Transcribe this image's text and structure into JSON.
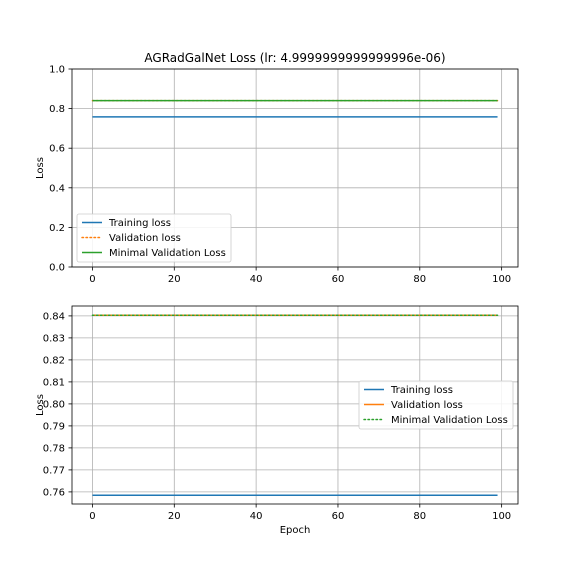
{
  "chart_data": [
    {
      "type": "line",
      "title": "AGRadGalNet Loss (lr: 4.9999999999999996e-06)",
      "xlabel": "",
      "ylabel": "Loss",
      "xlim": [
        -5,
        104
      ],
      "ylim": [
        0.0,
        1.0
      ],
      "xticks": [
        "0",
        "20",
        "40",
        "60",
        "80",
        "100"
      ],
      "yticks": [
        "0.0",
        "0.2",
        "0.4",
        "0.6",
        "0.8",
        "1.0"
      ],
      "grid": true,
      "legend_position": "lower-left",
      "series": [
        {
          "name": "Training loss",
          "color": "#1f77b4",
          "style": "solid",
          "x_start": 0,
          "x_end": 99,
          "value": 0.7585
        },
        {
          "name": "Validation loss",
          "color": "#ff7f0e",
          "style": "dotted",
          "x_start": 0,
          "x_end": 99,
          "value": 0.8403
        },
        {
          "name": "Minimal Validation Loss",
          "color": "#2ca02c",
          "style": "solid",
          "x_start": 0,
          "x_end": 99,
          "value": 0.8403
        }
      ]
    },
    {
      "type": "line",
      "title": "",
      "xlabel": "Epoch",
      "ylabel": "Loss",
      "xlim": [
        -5,
        104
      ],
      "ylim": [
        0.7545,
        0.8445
      ],
      "xticks": [
        "0",
        "20",
        "40",
        "60",
        "80",
        "100"
      ],
      "yticks": [
        "0.76",
        "0.77",
        "0.78",
        "0.79",
        "0.80",
        "0.81",
        "0.82",
        "0.83",
        "0.84"
      ],
      "grid": true,
      "legend_position": "center-right",
      "series": [
        {
          "name": "Training loss",
          "color": "#1f77b4",
          "style": "solid",
          "x_start": 0,
          "x_end": 99,
          "value": 0.7585
        },
        {
          "name": "Validation loss",
          "color": "#ff7f0e",
          "style": "solid",
          "x_start": 0,
          "x_end": 99,
          "value": 0.8403
        },
        {
          "name": "Minimal Validation Loss",
          "color": "#2ca02c",
          "style": "dotted",
          "x_start": 0,
          "x_end": 99,
          "value": 0.8403
        }
      ]
    }
  ]
}
